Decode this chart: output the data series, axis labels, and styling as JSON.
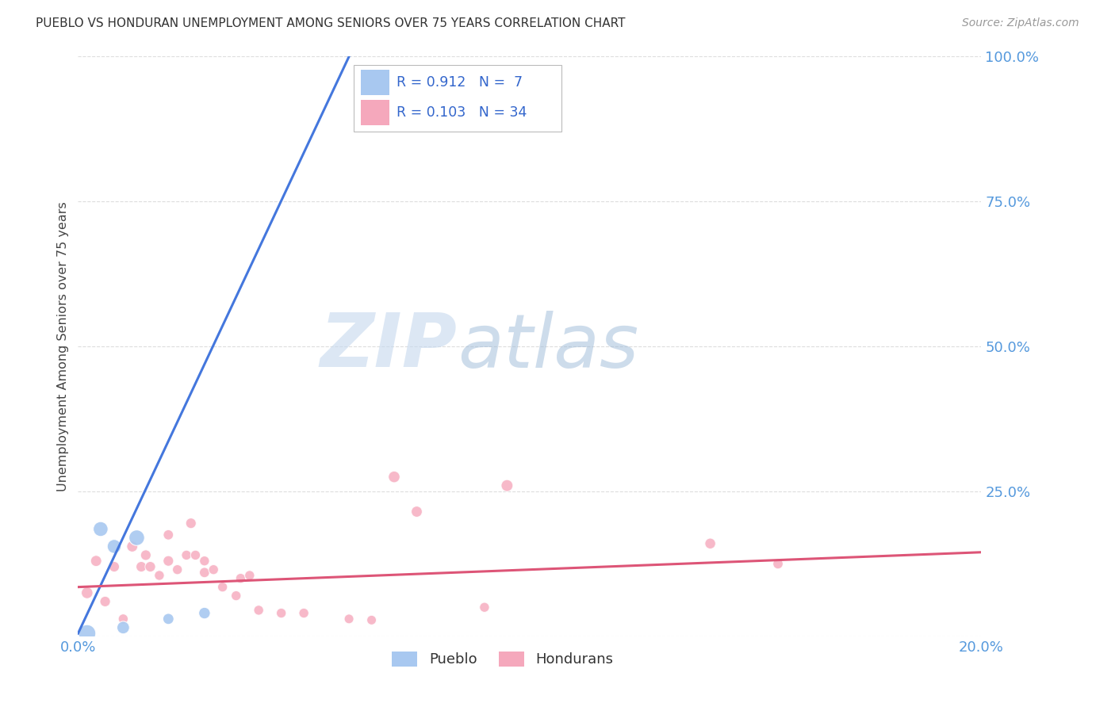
{
  "title": "PUEBLO VS HONDURAN UNEMPLOYMENT AMONG SENIORS OVER 75 YEARS CORRELATION CHART",
  "source": "Source: ZipAtlas.com",
  "ylabel": "Unemployment Among Seniors over 75 years",
  "xlim": [
    0.0,
    0.2
  ],
  "ylim": [
    0.0,
    1.0
  ],
  "xticks": [
    0.0,
    0.05,
    0.1,
    0.15,
    0.2
  ],
  "xtick_labels": [
    "0.0%",
    "",
    "",
    "",
    "20.0%"
  ],
  "yticks": [
    0.0,
    0.25,
    0.5,
    0.75,
    1.0
  ],
  "ytick_labels": [
    "",
    "25.0%",
    "50.0%",
    "75.0%",
    "100.0%"
  ],
  "pueblo_color": "#A8C8F0",
  "honduran_color": "#F5A8BC",
  "pueblo_line_color": "#4477DD",
  "honduran_line_color": "#DD5577",
  "pueblo_R": 0.912,
  "pueblo_N": 7,
  "honduran_R": 0.103,
  "honduran_N": 34,
  "pueblo_scatter_x": [
    0.002,
    0.005,
    0.008,
    0.01,
    0.013,
    0.02,
    0.028
  ],
  "pueblo_scatter_y": [
    0.005,
    0.185,
    0.155,
    0.015,
    0.17,
    0.03,
    0.04
  ],
  "pueblo_scatter_size": [
    250,
    180,
    160,
    130,
    200,
    100,
    110
  ],
  "honduran_scatter_x": [
    0.002,
    0.004,
    0.006,
    0.008,
    0.01,
    0.012,
    0.014,
    0.015,
    0.016,
    0.018,
    0.02,
    0.02,
    0.022,
    0.024,
    0.025,
    0.026,
    0.028,
    0.028,
    0.03,
    0.032,
    0.035,
    0.036,
    0.038,
    0.04,
    0.045,
    0.05,
    0.06,
    0.065,
    0.07,
    0.075,
    0.09,
    0.095,
    0.14,
    0.155
  ],
  "honduran_scatter_y": [
    0.075,
    0.13,
    0.06,
    0.12,
    0.03,
    0.155,
    0.12,
    0.14,
    0.12,
    0.105,
    0.13,
    0.175,
    0.115,
    0.14,
    0.195,
    0.14,
    0.11,
    0.13,
    0.115,
    0.085,
    0.07,
    0.1,
    0.105,
    0.045,
    0.04,
    0.04,
    0.03,
    0.028,
    0.275,
    0.215,
    0.05,
    0.26,
    0.16,
    0.125
  ],
  "honduran_scatter_size": [
    110,
    100,
    90,
    90,
    80,
    100,
    90,
    90,
    90,
    80,
    90,
    85,
    80,
    80,
    90,
    80,
    85,
    80,
    80,
    80,
    80,
    80,
    80,
    80,
    80,
    80,
    75,
    75,
    110,
    100,
    80,
    115,
    95,
    85
  ],
  "pueblo_trendline_x": [
    0.0,
    0.06
  ],
  "pueblo_trendline_y": [
    0.005,
    1.0
  ],
  "honduran_trendline_x": [
    0.0,
    0.2
  ],
  "honduran_trendline_y": [
    0.085,
    0.145
  ],
  "watermark_zip": "ZIP",
  "watermark_atlas": "atlas",
  "background_color": "#FFFFFF",
  "grid_color": "#DDDDDD",
  "legend_pueblo_label": "Pueblo",
  "legend_honduran_label": "Hondurans"
}
